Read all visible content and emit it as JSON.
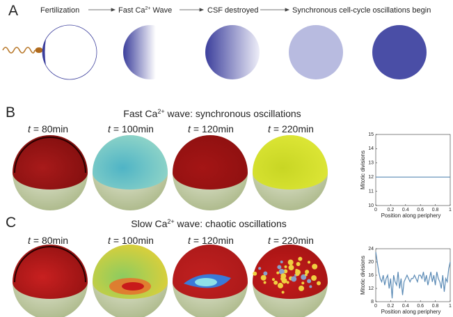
{
  "panel_a": {
    "label": "A",
    "steps": [
      {
        "text": "Fertilization"
      },
      {
        "text": "Fast Ca",
        "sup": "2+",
        "after": " Wave"
      },
      {
        "text": "CSF destroyed"
      },
      {
        "text": "Synchronous cell-cycle oscillations begin"
      }
    ]
  },
  "panel_b": {
    "label": "B",
    "title": {
      "text": "Fast Ca",
      "sup": "2+",
      "after": " wave: synchronous oscillations"
    },
    "time_var": "t",
    "times": [
      "= 80min",
      "= 100min",
      "= 120min",
      "= 220min"
    ]
  },
  "panel_c": {
    "label": "C",
    "title": {
      "text": "Slow Ca",
      "sup": "2+",
      "after": " wave: chaotic oscillations"
    },
    "time_var": "t",
    "times": [
      "= 80min",
      "= 100min",
      "= 120min",
      "= 220min"
    ]
  },
  "chart_data": [
    {
      "type": "line",
      "xlabel": "Position along periphery",
      "ylabel": "Mitotic divisions",
      "x": [
        0,
        1
      ],
      "series": [
        {
          "color": "#5a8ab5",
          "values": [
            12,
            12
          ]
        }
      ],
      "xlim": [
        0,
        1
      ],
      "xticks": [
        0,
        0.2,
        0.4,
        0.6,
        0.8,
        1
      ],
      "ylim": [
        10,
        15
      ],
      "yticks": [
        10,
        11,
        12,
        13,
        14,
        15
      ]
    },
    {
      "type": "line",
      "xlabel": "Position along periphery",
      "ylabel": "Mitotic divisions",
      "x": [
        0,
        0.02,
        0.04,
        0.06,
        0.08,
        0.1,
        0.12,
        0.14,
        0.16,
        0.18,
        0.2,
        0.22,
        0.24,
        0.26,
        0.28,
        0.3,
        0.32,
        0.34,
        0.36,
        0.38,
        0.4,
        0.42,
        0.44,
        0.46,
        0.48,
        0.5,
        0.52,
        0.54,
        0.56,
        0.58,
        0.6,
        0.62,
        0.64,
        0.66,
        0.68,
        0.7,
        0.72,
        0.74,
        0.76,
        0.78,
        0.8,
        0.82,
        0.84,
        0.86,
        0.88,
        0.9,
        0.92,
        0.94,
        0.96,
        0.98,
        1
      ],
      "series": [
        {
          "color": "#5a8ab5",
          "values": [
            23,
            20,
            17,
            15,
            14,
            16,
            13,
            15,
            16,
            12,
            15,
            9,
            16,
            14,
            13,
            17,
            12,
            15,
            10,
            14,
            15,
            16,
            15,
            14,
            15,
            15,
            16,
            15,
            14,
            16,
            16,
            15,
            17,
            14,
            16,
            13,
            15,
            17,
            14,
            16,
            13,
            17,
            15,
            14,
            12,
            16,
            11,
            15,
            14,
            18,
            20
          ]
        }
      ],
      "xlim": [
        0,
        1
      ],
      "xticks": [
        0,
        0.2,
        0.4,
        0.6,
        0.8,
        1
      ],
      "ylim": [
        8,
        24
      ],
      "yticks": [
        8,
        12,
        16,
        20,
        24
      ]
    }
  ]
}
